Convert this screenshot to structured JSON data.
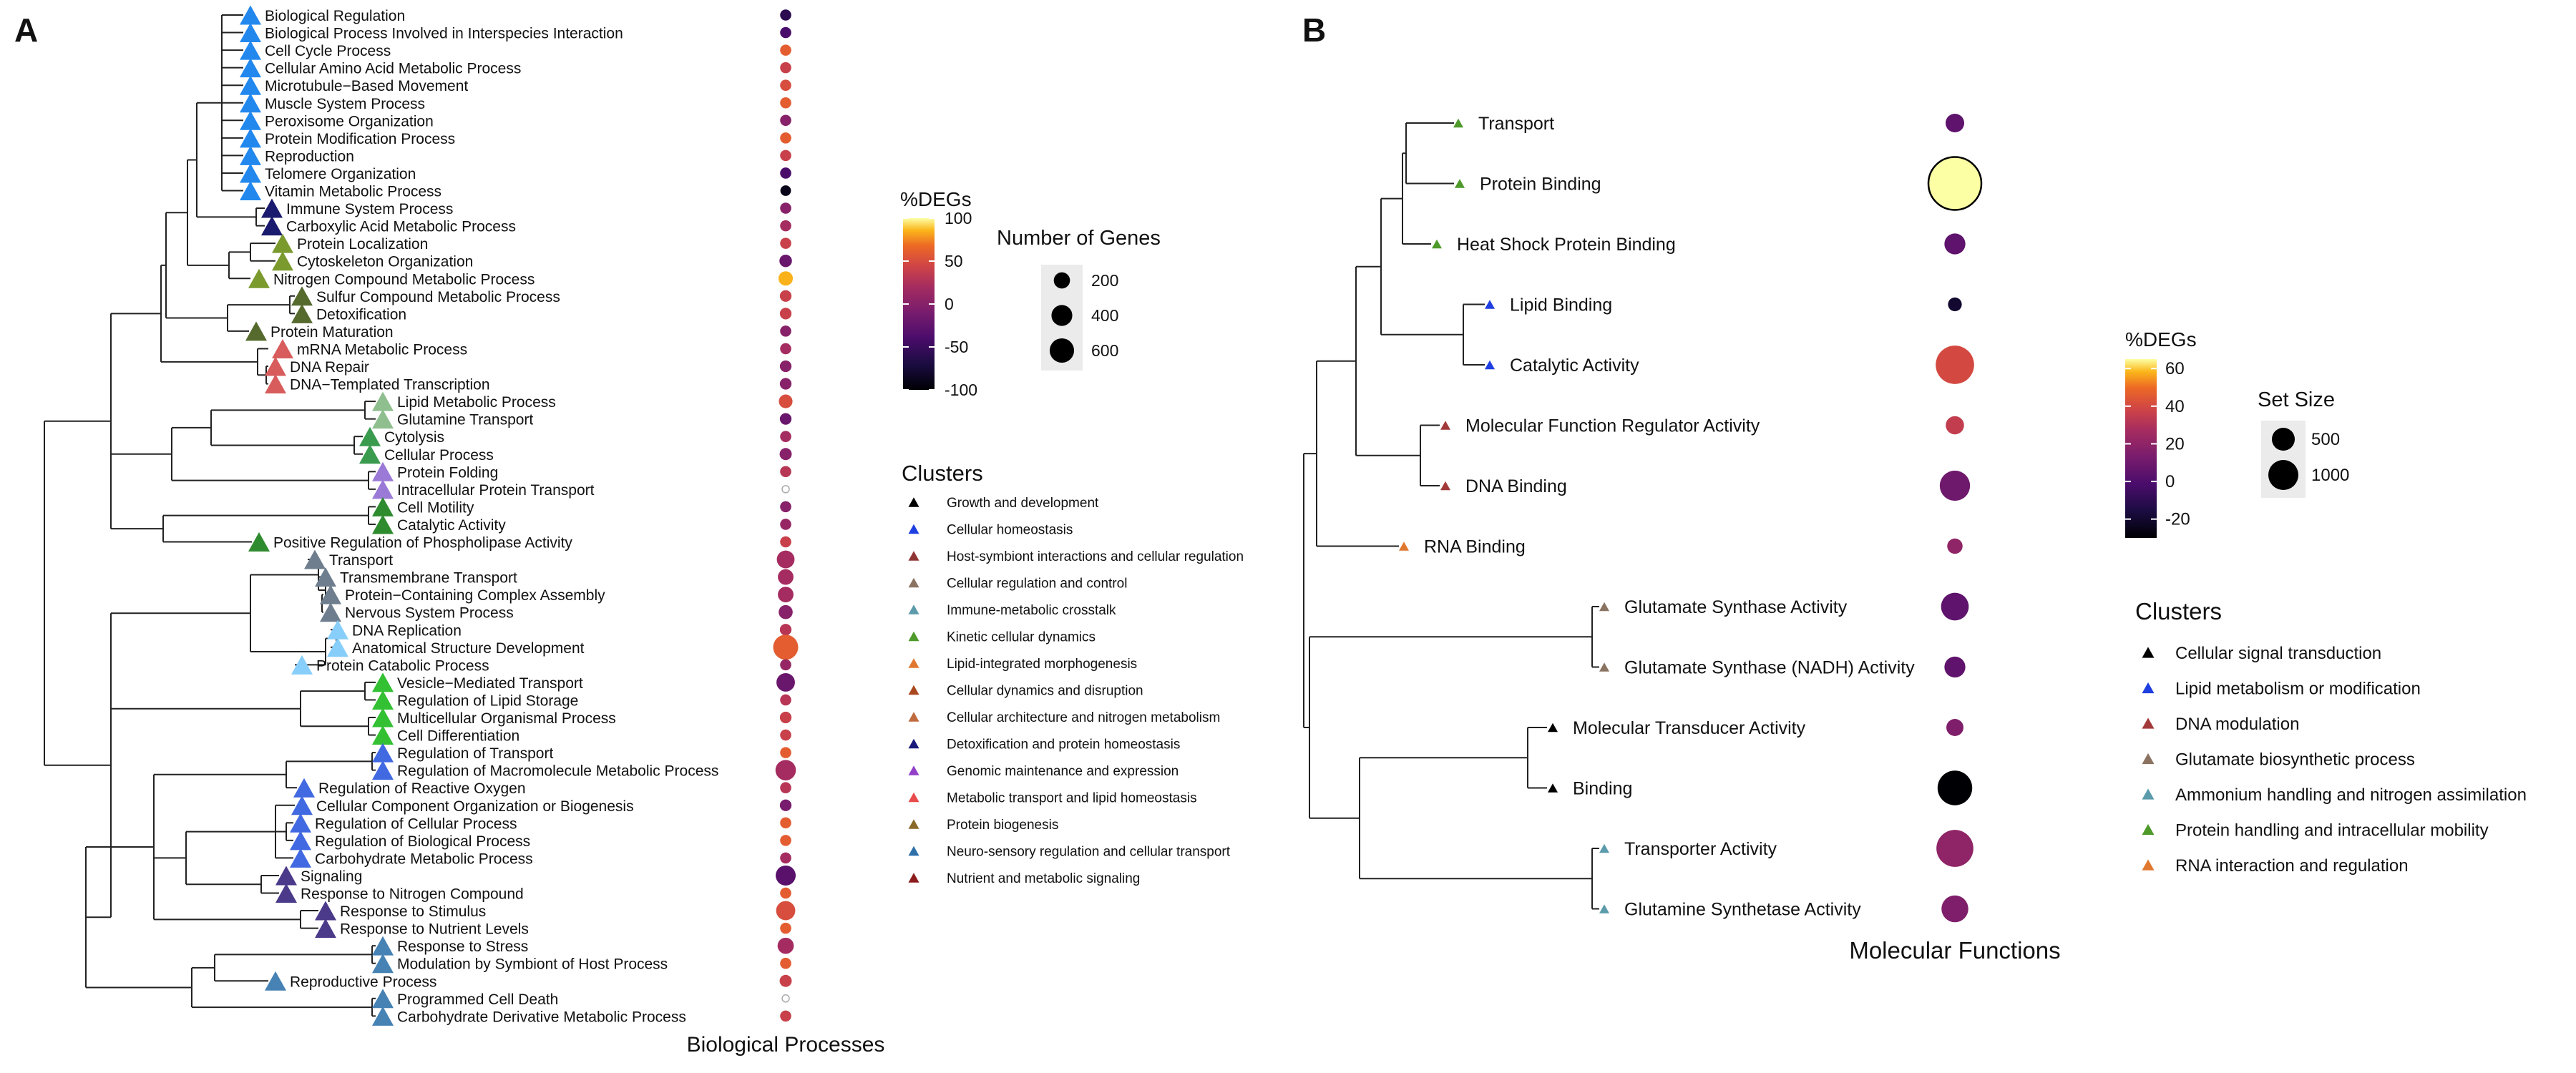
{
  "panels": {
    "a_letter": "A",
    "b_letter": "B"
  },
  "chart_data": [
    {
      "panel": "A",
      "type": "scatter",
      "subtype": "dendrogram-bubble",
      "xlabel": "Biological Processes",
      "terms": [
        {
          "label": "Biological Regulation",
          "cluster": 14,
          "pct": -60,
          "size": 60
        },
        {
          "label": "Biological Process Involved in Interspecies Interaction",
          "cluster": 14,
          "pct": -40,
          "size": 60
        },
        {
          "label": "Cell Cycle Process",
          "cluster": 14,
          "pct": 60,
          "size": 60
        },
        {
          "label": "Cellular Amino Acid Metabolic Process",
          "cluster": 14,
          "pct": 40,
          "size": 60
        },
        {
          "label": "Microtubule−Based Movement",
          "cluster": 14,
          "pct": 50,
          "size": 60
        },
        {
          "label": "Muscle System Process",
          "cluster": 14,
          "pct": 60,
          "size": 60
        },
        {
          "label": "Peroxisome Organization",
          "cluster": 14,
          "pct": 0,
          "size": 60
        },
        {
          "label": "Protein Modification Process",
          "cluster": 14,
          "pct": 60,
          "size": 60
        },
        {
          "label": "Reproduction",
          "cluster": 14,
          "pct": 40,
          "size": 60
        },
        {
          "label": "Telomere Organization",
          "cluster": 14,
          "pct": -40,
          "size": 60
        },
        {
          "label": "Vitamin Metabolic Process",
          "cluster": 14,
          "pct": -90,
          "size": 50
        },
        {
          "label": "Immune System Process",
          "cluster": 10,
          "pct": 0,
          "size": 60
        },
        {
          "label": "Carboxylic Acid Metabolic Process",
          "cluster": 10,
          "pct": 20,
          "size": 60
        },
        {
          "label": "Protein Localization",
          "cluster": 6,
          "pct": 40,
          "size": 60
        },
        {
          "label": "Cytoskeleton Organization",
          "cluster": 6,
          "pct": -20,
          "size": 90
        },
        {
          "label": "Nitrogen Compound Metabolic Process",
          "cluster": 6,
          "pct": 85,
          "size": 140
        },
        {
          "label": "Sulfur Compound Metabolic Process",
          "cluster": 1,
          "pct": 40,
          "size": 70
        },
        {
          "label": "Detoxification",
          "cluster": 1,
          "pct": 40,
          "size": 70
        },
        {
          "label": "Protein Maturation",
          "cluster": 1,
          "pct": 0,
          "size": 60
        },
        {
          "label": "mRNA Metabolic Process",
          "cluster": 12,
          "pct": 20,
          "size": 60
        },
        {
          "label": "DNA Repair",
          "cluster": 12,
          "pct": 0,
          "size": 70
        },
        {
          "label": "DNA−Templated Transcription",
          "cluster": 12,
          "pct": 0,
          "size": 70
        },
        {
          "label": "Lipid Metabolic Process",
          "cluster": 4,
          "pct": 50,
          "size": 120
        },
        {
          "label": "Glutamine Transport",
          "cluster": 4,
          "pct": -20,
          "size": 70
        },
        {
          "label": "Cytolysis",
          "cluster": 7,
          "pct": 20,
          "size": 60
        },
        {
          "label": "Cellular Process",
          "cluster": 7,
          "pct": 0,
          "size": 80
        },
        {
          "label": "Protein Folding",
          "cluster": 3,
          "pct": 30,
          "size": 60
        },
        {
          "label": "Intracellular Protein Transport",
          "cluster": 3,
          "pct": null,
          "size": 70
        },
        {
          "label": "Cell Motility",
          "cluster": 2,
          "pct": 0,
          "size": 60
        },
        {
          "label": "Catalytic Activity",
          "cluster": 2,
          "pct": 10,
          "size": 60
        },
        {
          "label": "Positive Regulation of Phospholipase Activity",
          "cluster": 2,
          "pct": 40,
          "size": 60
        },
        {
          "label": "Transport",
          "cluster": 11,
          "pct": 20,
          "size": 260
        },
        {
          "label": "Transmembrane Transport",
          "cluster": 11,
          "pct": 20,
          "size": 180
        },
        {
          "label": "Protein−Containing Complex Assembly",
          "cluster": 11,
          "pct": 20,
          "size": 180
        },
        {
          "label": "Nervous System Process",
          "cluster": 11,
          "pct": 0,
          "size": 130
        },
        {
          "label": "DNA Replication",
          "cluster": 5,
          "pct": 30,
          "size": 70
        },
        {
          "label": "Anatomical Structure Development",
          "cluster": 5,
          "pct": 60,
          "size": 640
        },
        {
          "label": "Protein Catabolic Process",
          "cluster": 5,
          "pct": 10,
          "size": 60
        },
        {
          "label": "Vesicle−Mediated Transport",
          "cluster": 8,
          "pct": -20,
          "size": 290
        },
        {
          "label": "Regulation of Lipid Storage",
          "cluster": 8,
          "pct": 30,
          "size": 60
        },
        {
          "label": "Multicellular Organismal Process",
          "cluster": 8,
          "pct": 40,
          "size": 70
        },
        {
          "label": "Cell Differentiation",
          "cluster": 8,
          "pct": 40,
          "size": 60
        },
        {
          "label": "Regulation of Transport",
          "cluster": 9,
          "pct": 60,
          "size": 60
        },
        {
          "label": "Regulation of Macromolecule Metabolic Process",
          "cluster": 9,
          "pct": 20,
          "size": 380
        },
        {
          "label": "Regulation of Reactive Oxygen",
          "cluster": 9,
          "pct": 30,
          "size": 60
        },
        {
          "label": "Cellular Component Organization or Biogenesis",
          "cluster": 9,
          "pct": -10,
          "size": 70
        },
        {
          "label": "Regulation of Cellular Process",
          "cluster": 9,
          "pct": 60,
          "size": 60
        },
        {
          "label": "Regulation of Biological Process",
          "cluster": 9,
          "pct": 60,
          "size": 60
        },
        {
          "label": "Carbohydrate Metabolic Process",
          "cluster": 9,
          "pct": 20,
          "size": 60
        },
        {
          "label": "Signaling",
          "cluster": 13,
          "pct": -30,
          "size": 360
        },
        {
          "label": "Response to Nitrogen Compound",
          "cluster": 13,
          "pct": 60,
          "size": 60
        },
        {
          "label": "Response to Stimulus",
          "cluster": 13,
          "pct": 50,
          "size": 320
        },
        {
          "label": "Response to Nutrient Levels",
          "cluster": 13,
          "pct": 60,
          "size": 60
        },
        {
          "label": "Response to Stress",
          "cluster": 15,
          "pct": 20,
          "size": 200
        },
        {
          "label": "Modulation by Symbiont of Host Process",
          "cluster": 15,
          "pct": 60,
          "size": 60
        },
        {
          "label": "Reproductive Process",
          "cluster": 15,
          "pct": 40,
          "size": 80
        },
        {
          "label": "Programmed Cell Death",
          "cluster": 15,
          "pct": null,
          "size": 70
        },
        {
          "label": "Carbohydrate Derivative Metabolic Process",
          "cluster": 15,
          "pct": 40,
          "size": 60
        }
      ],
      "color_legend": {
        "title": "%DEGs",
        "ticks": [
          "100",
          "50",
          "0",
          "-50",
          "-100"
        ],
        "range": [
          -100,
          100
        ]
      },
      "size_legend": {
        "title": "Number of Genes",
        "entries": [
          {
            "label": "200",
            "value": 200
          },
          {
            "label": "400",
            "value": 400
          },
          {
            "label": "600",
            "value": 600
          }
        ]
      },
      "clusters_legend": {
        "title": "Clusters",
        "items": [
          {
            "label": "Growth and development",
            "color": "#000000"
          },
          {
            "label": "Cellular homeostasis",
            "color": "#1f3fe0"
          },
          {
            "label": "Host-symbiont interactions and cellular regulation",
            "color": "#8f3535"
          },
          {
            "label": "Cellular regulation and control",
            "color": "#8b7362"
          },
          {
            "label": "Immune-metabolic crosstalk",
            "color": "#5b9bab"
          },
          {
            "label": "Kinetic cellular dynamics",
            "color": "#4e9a2a"
          },
          {
            "label": "Lipid-integrated morphogenesis",
            "color": "#e0782f"
          },
          {
            "label": "Cellular dynamics and disruption",
            "color": "#a9481e"
          },
          {
            "label": "Cellular architecture and nitrogen metabolism",
            "color": "#c06a3f"
          },
          {
            "label": "Detoxification and protein homeostasis",
            "color": "#1a1a7a"
          },
          {
            "label": "Genomic maintenance and expression",
            "color": "#9340c9"
          },
          {
            "label": "Metabolic transport and lipid homeostasis",
            "color": "#e84c4c"
          },
          {
            "label": "Protein biogenesis",
            "color": "#8a6a2a"
          },
          {
            "label": "Neuro-sensory regulation and cellular transport",
            "color": "#2d6fa8"
          },
          {
            "label": "Nutrient and metabolic signaling",
            "color": "#8c1c1c"
          }
        ]
      },
      "term_cluster_colors": {
        "1": "#566a2e",
        "2": "#2e8b2e",
        "3": "#9a7ad6",
        "4": "#8fbf8f",
        "5": "#87cefa",
        "6": "#7a9a2e",
        "7": "#3a9a4e",
        "8": "#33c033",
        "9": "#4169e1",
        "10": "#1a1a6e",
        "11": "#6e7e8e",
        "12": "#d85c5c",
        "13": "#4b3a8a",
        "14": "#2288ee",
        "15": "#4682b4"
      }
    },
    {
      "panel": "B",
      "type": "scatter",
      "subtype": "dendrogram-bubble",
      "xlabel": "Molecular Functions",
      "terms": [
        {
          "label": "Transport",
          "cluster": 5,
          "pct": 5,
          "size": 180
        },
        {
          "label": "Protein Binding",
          "cluster": 5,
          "pct": 65,
          "size": 2400
        },
        {
          "label": "Heat Shock Protein Binding",
          "cluster": 5,
          "pct": 5,
          "size": 250
        },
        {
          "label": "Lipid Binding",
          "cluster": 1,
          "pct": -20,
          "size": 70
        },
        {
          "label": "Catalytic Activity",
          "cluster": 1,
          "pct": 40,
          "size": 1150
        },
        {
          "label": "Molecular Function Regulator Activity",
          "cluster": 2,
          "pct": 35,
          "size": 170
        },
        {
          "label": "DNA Binding",
          "cluster": 2,
          "pct": 10,
          "size": 650
        },
        {
          "label": "RNA Binding",
          "cluster": 6,
          "pct": 20,
          "size": 100
        },
        {
          "label": "Glutamate Synthase Activity",
          "cluster": 3,
          "pct": 5,
          "size": 520
        },
        {
          "label": "Glutamate Synthase (NADH) Activity",
          "cluster": 3,
          "pct": 5,
          "size": 250
        },
        {
          "label": "Molecular Transducer Activity",
          "cluster": 0,
          "pct": 15,
          "size": 140
        },
        {
          "label": "Binding",
          "cluster": 0,
          "pct": -30,
          "size": 900
        },
        {
          "label": "Transporter Activity",
          "cluster": 4,
          "pct": 20,
          "size": 1050
        },
        {
          "label": "Glutamine Synthetase Activity",
          "cluster": 4,
          "pct": 15,
          "size": 480
        }
      ],
      "color_legend": {
        "title": "%DEGs",
        "ticks": [
          "60",
          "40",
          "20",
          "0",
          "-20"
        ],
        "range": [
          -30,
          65
        ]
      },
      "size_legend": {
        "title": "Set Size",
        "entries": [
          {
            "label": "500",
            "value": 500
          },
          {
            "label": "1000",
            "value": 1000
          }
        ]
      },
      "clusters_legend": {
        "title": "Clusters",
        "items": [
          {
            "label": "Cellular signal transduction",
            "color": "#000000"
          },
          {
            "label": "Lipid metabolism or modification",
            "color": "#1f3fe0"
          },
          {
            "label": "DNA modulation",
            "color": "#a33a3a"
          },
          {
            "label": "Glutamate biosynthetic process",
            "color": "#8b7362"
          },
          {
            "label": "Ammonium handling and nitrogen assimilation",
            "color": "#5b9bab"
          },
          {
            "label": "Protein handling and intracellular mobility",
            "color": "#4e9a2a"
          },
          {
            "label": "RNA interaction and regulation",
            "color": "#e0782f"
          }
        ]
      }
    }
  ]
}
